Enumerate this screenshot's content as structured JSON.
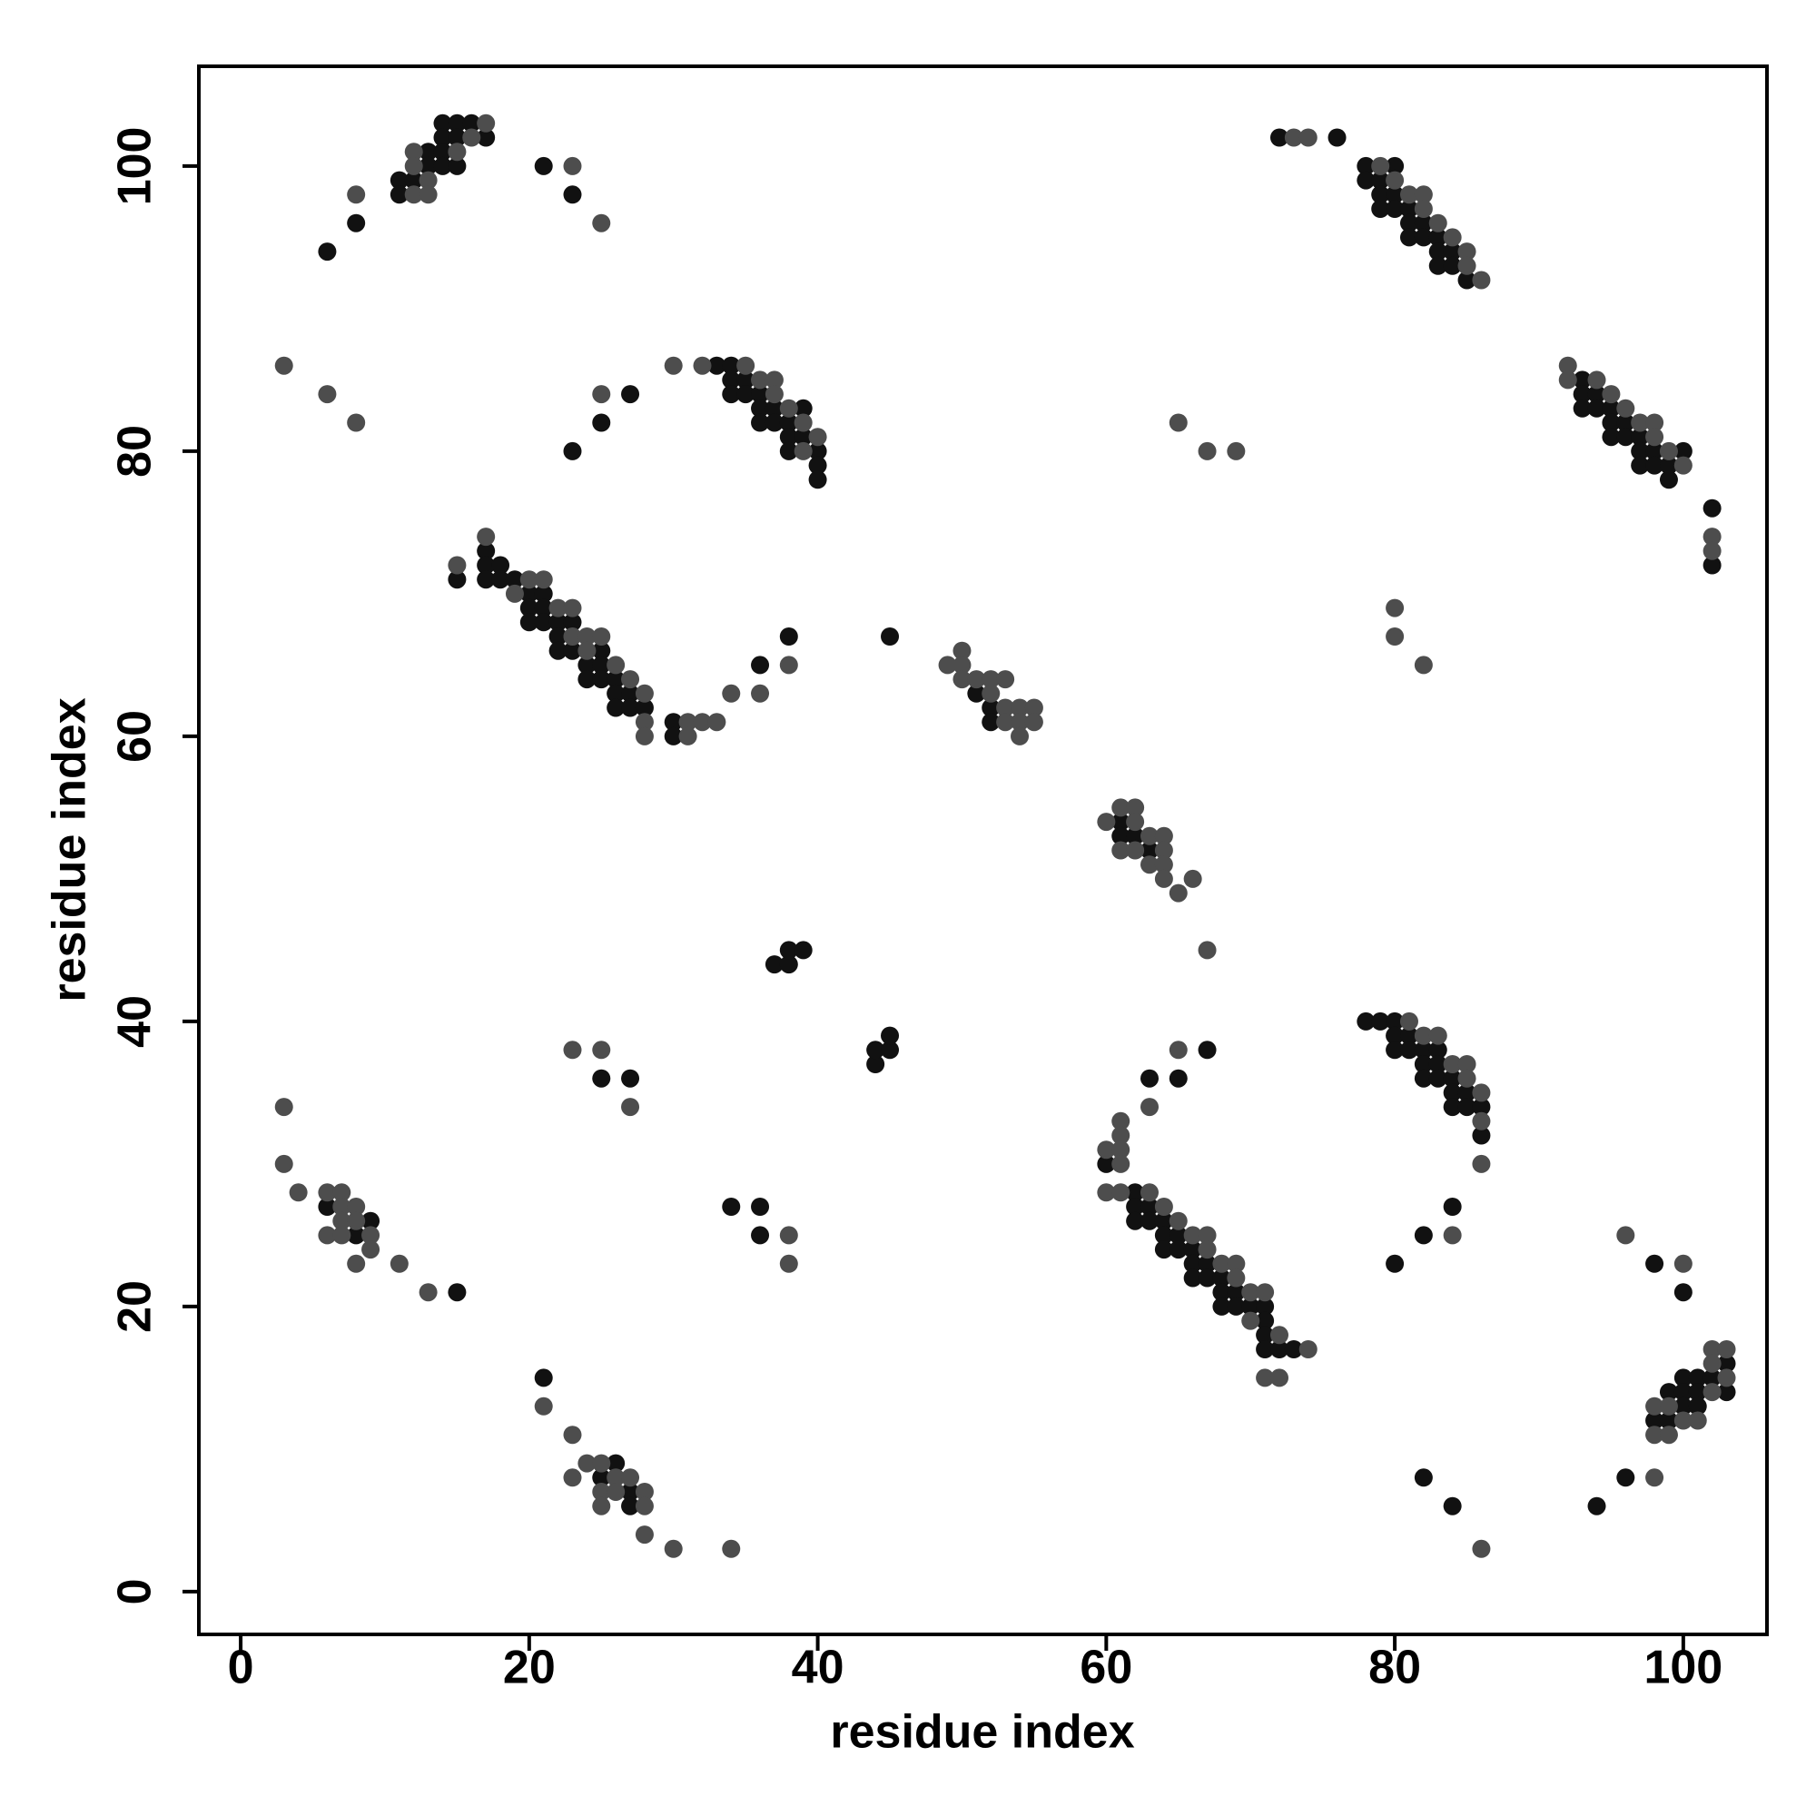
{
  "chart_data": {
    "type": "scatter",
    "xlabel": "residue index",
    "ylabel": "residue index",
    "xlim": [
      -2.9,
      105.8
    ],
    "ylim": [
      -3,
      107
    ],
    "xticks": [
      0,
      20,
      40,
      60,
      80,
      100
    ],
    "yticks": [
      0,
      20,
      40,
      60,
      80,
      100
    ],
    "series": [
      {
        "color": "#111111",
        "x": [
          14,
          15,
          16,
          14,
          15,
          17,
          13,
          14,
          13,
          14,
          15,
          11,
          12,
          11,
          8,
          6,
          21,
          23,
          23,
          25,
          27,
          33,
          34,
          34,
          35,
          34,
          35,
          36,
          36,
          37,
          39,
          36,
          37,
          38,
          38,
          39,
          38,
          40,
          40,
          40,
          72,
          76,
          78,
          80,
          78,
          79,
          79,
          80,
          79,
          80,
          81,
          81,
          82,
          81,
          82,
          83,
          83,
          84,
          83,
          84,
          85,
          93,
          93,
          94,
          93,
          94,
          95,
          95,
          96,
          95,
          96,
          97,
          97,
          98,
          100,
          97,
          98,
          99,
          99,
          102,
          102,
          17,
          17,
          18,
          15,
          17,
          18,
          19,
          20,
          21,
          20,
          21,
          20,
          21,
          22,
          23,
          22,
          22,
          23,
          25,
          24,
          25,
          24,
          25,
          26,
          26,
          27,
          26,
          27,
          28,
          30,
          30,
          36,
          38,
          45,
          51,
          52,
          52,
          61,
          61,
          62,
          63,
          37,
          38,
          38,
          39,
          44,
          44,
          45,
          45,
          25,
          27,
          6,
          9,
          8,
          15,
          34,
          36,
          36,
          21,
          26,
          25,
          27,
          27,
          63,
          65,
          67,
          60,
          62,
          62,
          63,
          62,
          63,
          64,
          64,
          65,
          64,
          65,
          66,
          66,
          67,
          66,
          67,
          68,
          68,
          69,
          68,
          69,
          70,
          71,
          71,
          71,
          71,
          72,
          73,
          78,
          79,
          80,
          80,
          81,
          80,
          81,
          82,
          83,
          82,
          83,
          82,
          83,
          84,
          84,
          85,
          84,
          85,
          86,
          86,
          84,
          82,
          80,
          98,
          100,
          103,
          100,
          101,
          102,
          99,
          100,
          101,
          103,
          100,
          101,
          98,
          99,
          82,
          84,
          94,
          96
        ],
        "values": [
          103,
          103,
          103,
          102,
          102,
          102,
          101,
          101,
          100,
          100,
          100,
          99,
          99,
          98,
          96,
          94,
          100,
          98,
          80,
          82,
          84,
          86,
          86,
          85,
          85,
          84,
          84,
          84,
          83,
          83,
          83,
          82,
          82,
          82,
          81,
          81,
          80,
          80,
          79,
          78,
          102,
          102,
          100,
          100,
          99,
          99,
          98,
          98,
          97,
          97,
          97,
          96,
          96,
          95,
          95,
          95,
          94,
          94,
          93,
          93,
          92,
          85,
          84,
          84,
          83,
          83,
          83,
          82,
          82,
          81,
          81,
          81,
          80,
          80,
          80,
          79,
          79,
          79,
          78,
          76,
          72,
          73,
          72,
          72,
          71,
          71,
          71,
          71,
          70,
          70,
          69,
          69,
          68,
          68,
          68,
          68,
          67,
          66,
          66,
          66,
          65,
          65,
          64,
          64,
          64,
          63,
          63,
          62,
          62,
          62,
          61,
          60,
          65,
          67,
          67,
          63,
          62,
          61,
          54,
          53,
          53,
          52,
          44,
          44,
          45,
          45,
          37,
          38,
          38,
          39,
          36,
          36,
          27,
          26,
          25,
          21,
          27,
          27,
          25,
          15,
          9,
          8,
          7,
          6,
          36,
          36,
          38,
          30,
          28,
          27,
          27,
          26,
          26,
          26,
          25,
          25,
          24,
          24,
          24,
          23,
          23,
          22,
          22,
          22,
          21,
          21,
          20,
          20,
          20,
          20,
          19,
          18,
          17,
          17,
          17,
          40,
          40,
          40,
          39,
          39,
          38,
          38,
          38,
          38,
          37,
          37,
          36,
          36,
          36,
          35,
          35,
          34,
          34,
          34,
          32,
          27,
          25,
          23,
          23,
          21,
          16,
          15,
          15,
          15,
          14,
          14,
          14,
          14,
          13,
          13,
          12,
          12,
          8,
          6,
          6,
          8
        ]
      },
      {
        "color": "#4d4d4d",
        "x": [
          17,
          16,
          12,
          15,
          12,
          13,
          12,
          13,
          8,
          23,
          25,
          3,
          6,
          8,
          25,
          30,
          32,
          35,
          36,
          37,
          37,
          38,
          39,
          40,
          39,
          73,
          74,
          79,
          80,
          81,
          82,
          82,
          83,
          84,
          85,
          85,
          86,
          92,
          92,
          94,
          95,
          96,
          97,
          98,
          98,
          99,
          100,
          102,
          102,
          65,
          67,
          69,
          80,
          80,
          82,
          17,
          15,
          20,
          21,
          19,
          22,
          23,
          23,
          24,
          25,
          24,
          26,
          27,
          28,
          28,
          31,
          32,
          33,
          28,
          31,
          34,
          36,
          38,
          50,
          49,
          50,
          50,
          51,
          52,
          53,
          52,
          53,
          54,
          55,
          53,
          54,
          55,
          54,
          61,
          62,
          60,
          62,
          63,
          64,
          61,
          62,
          64,
          63,
          64,
          64,
          66,
          65,
          67,
          3,
          3,
          4,
          23,
          25,
          27,
          6,
          7,
          7,
          8,
          7,
          8,
          6,
          7,
          9,
          9,
          8,
          11,
          13,
          38,
          38,
          21,
          23,
          24,
          25,
          23,
          26,
          27,
          25,
          26,
          28,
          25,
          28,
          28,
          30,
          34,
          61,
          61,
          60,
          61,
          61,
          63,
          65,
          60,
          61,
          63,
          64,
          65,
          66,
          67,
          67,
          68,
          69,
          69,
          70,
          71,
          70,
          72,
          74,
          71,
          72,
          81,
          82,
          83,
          84,
          85,
          85,
          86,
          86,
          86,
          84,
          96,
          100,
          102,
          103,
          102,
          103,
          102,
          98,
          99,
          100,
          101,
          98,
          99,
          86,
          98
        ],
        "values": [
          103,
          102,
          101,
          101,
          100,
          99,
          98,
          98,
          98,
          100,
          96,
          86,
          84,
          82,
          84,
          86,
          86,
          86,
          85,
          85,
          84,
          83,
          82,
          81,
          80,
          102,
          102,
          100,
          99,
          98,
          98,
          97,
          96,
          95,
          94,
          93,
          92,
          86,
          85,
          85,
          84,
          83,
          82,
          82,
          81,
          80,
          79,
          74,
          73,
          82,
          80,
          80,
          69,
          67,
          65,
          74,
          72,
          71,
          71,
          70,
          69,
          69,
          67,
          67,
          67,
          66,
          65,
          64,
          63,
          61,
          61,
          61,
          61,
          60,
          60,
          63,
          63,
          65,
          66,
          65,
          65,
          64,
          64,
          64,
          64,
          63,
          62,
          62,
          62,
          61,
          61,
          61,
          60,
          55,
          55,
          54,
          54,
          53,
          53,
          52,
          52,
          52,
          51,
          51,
          50,
          50,
          49,
          45,
          34,
          30,
          28,
          38,
          38,
          34,
          28,
          28,
          27,
          27,
          26,
          26,
          25,
          25,
          25,
          24,
          23,
          23,
          21,
          25,
          23,
          13,
          11,
          9,
          9,
          8,
          8,
          8,
          7,
          7,
          7,
          6,
          6,
          4,
          3,
          3,
          33,
          32,
          31,
          31,
          30,
          34,
          38,
          28,
          28,
          28,
          27,
          26,
          25,
          25,
          24,
          23,
          23,
          22,
          21,
          21,
          19,
          18,
          17,
          15,
          15,
          40,
          39,
          39,
          37,
          37,
          36,
          35,
          33,
          30,
          25,
          25,
          23,
          17,
          17,
          16,
          15,
          14,
          13,
          13,
          12,
          12,
          11,
          11,
          3,
          8
        ]
      }
    ]
  }
}
